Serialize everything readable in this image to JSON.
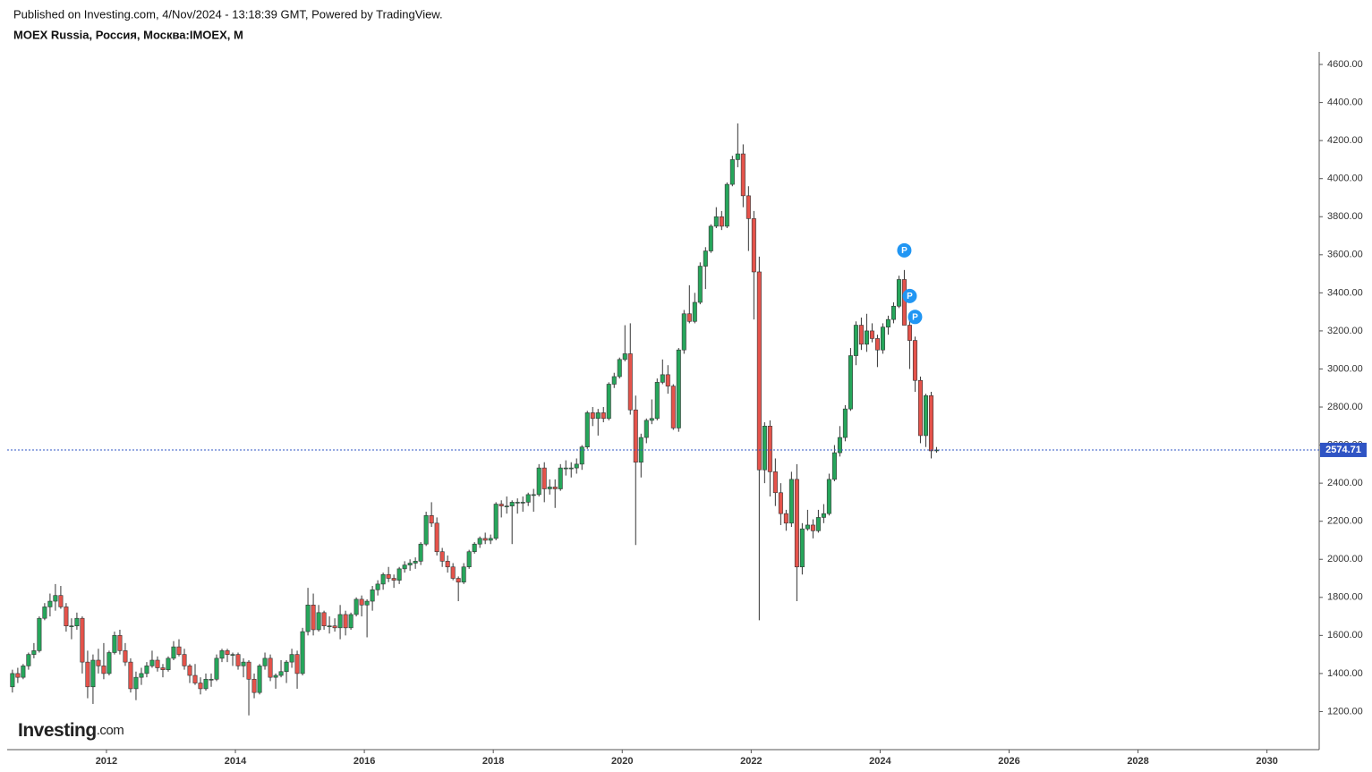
{
  "header": {
    "published": "Published on Investing.com, 4/Nov/2024 - 13:18:39 GMT, Powered by TradingView.",
    "symbol": "MOEX Russia, Россия, Москва:IMOEX, M"
  },
  "logo": {
    "name": "Investing",
    "suffix": ".com"
  },
  "chart_data": {
    "type": "candlestick",
    "x": [
      "2010-07",
      "2010-08",
      "2010-09",
      "2010-10",
      "2010-11",
      "2010-12",
      "2011-01",
      "2011-02",
      "2011-03",
      "2011-04",
      "2011-05",
      "2011-06",
      "2011-07",
      "2011-08",
      "2011-09",
      "2011-10",
      "2011-11",
      "2011-12",
      "2012-01",
      "2012-02",
      "2012-03",
      "2012-04",
      "2012-05",
      "2012-06",
      "2012-07",
      "2012-08",
      "2012-09",
      "2012-10",
      "2012-11",
      "2012-12",
      "2013-01",
      "2013-02",
      "2013-03",
      "2013-04",
      "2013-05",
      "2013-06",
      "2013-07",
      "2013-08",
      "2013-09",
      "2013-10",
      "2013-11",
      "2013-12",
      "2014-01",
      "2014-02",
      "2014-03",
      "2014-04",
      "2014-05",
      "2014-06",
      "2014-07",
      "2014-08",
      "2014-09",
      "2014-10",
      "2014-11",
      "2014-12",
      "2015-01",
      "2015-02",
      "2015-03",
      "2015-04",
      "2015-05",
      "2015-06",
      "2015-07",
      "2015-08",
      "2015-09",
      "2015-10",
      "2015-11",
      "2015-12",
      "2016-01",
      "2016-02",
      "2016-03",
      "2016-04",
      "2016-05",
      "2016-06",
      "2016-07",
      "2016-08",
      "2016-09",
      "2016-10",
      "2016-11",
      "2016-12",
      "2017-01",
      "2017-02",
      "2017-03",
      "2017-04",
      "2017-05",
      "2017-06",
      "2017-07",
      "2017-08",
      "2017-09",
      "2017-10",
      "2017-11",
      "2017-12",
      "2018-01",
      "2018-02",
      "2018-03",
      "2018-04",
      "2018-05",
      "2018-06",
      "2018-07",
      "2018-08",
      "2018-09",
      "2018-10",
      "2018-11",
      "2018-12",
      "2019-01",
      "2019-02",
      "2019-03",
      "2019-04",
      "2019-05",
      "2019-06",
      "2019-07",
      "2019-08",
      "2019-09",
      "2019-10",
      "2019-11",
      "2019-12",
      "2020-01",
      "2020-02",
      "2020-03",
      "2020-04",
      "2020-05",
      "2020-06",
      "2020-07",
      "2020-08",
      "2020-09",
      "2020-10",
      "2020-11",
      "2020-12",
      "2021-01",
      "2021-02",
      "2021-03",
      "2021-04",
      "2021-05",
      "2021-06",
      "2021-07",
      "2021-08",
      "2021-09",
      "2021-10",
      "2021-11",
      "2021-12",
      "2022-01",
      "2022-02",
      "2022-03",
      "2022-04",
      "2022-05",
      "2022-06",
      "2022-07",
      "2022-08",
      "2022-09",
      "2022-10",
      "2022-11",
      "2022-12",
      "2023-01",
      "2023-02",
      "2023-03",
      "2023-04",
      "2023-05",
      "2023-06",
      "2023-07",
      "2023-08",
      "2023-09",
      "2023-10",
      "2023-11",
      "2023-12",
      "2024-01",
      "2024-02",
      "2024-03",
      "2024-04",
      "2024-05",
      "2024-06",
      "2024-07",
      "2024-08",
      "2024-09",
      "2024-10",
      "2024-11"
    ],
    "open": [
      1330,
      1400,
      1380,
      1440,
      1500,
      1520,
      1690,
      1750,
      1780,
      1810,
      1750,
      1650,
      1650,
      1690,
      1460,
      1330,
      1470,
      1440,
      1400,
      1510,
      1600,
      1520,
      1460,
      1320,
      1380,
      1400,
      1440,
      1470,
      1430,
      1420,
      1480,
      1540,
      1500,
      1440,
      1390,
      1350,
      1320,
      1370,
      1370,
      1480,
      1520,
      1500,
      1500,
      1440,
      1460,
      1370,
      1300,
      1440,
      1480,
      1380,
      1390,
      1410,
      1460,
      1500,
      1400,
      1620,
      1760,
      1630,
      1720,
      1650,
      1650,
      1640,
      1710,
      1640,
      1710,
      1790,
      1760,
      1780,
      1840,
      1870,
      1920,
      1900,
      1890,
      1950,
      1970,
      1980,
      1990,
      2080,
      2230,
      2190,
      2040,
      1990,
      1960,
      1900,
      1880,
      1960,
      2040,
      2080,
      2110,
      2100,
      2110,
      2290,
      2280,
      2280,
      2300,
      2300,
      2300,
      2340,
      2340,
      2480,
      2370,
      2380,
      2370,
      2480,
      2480,
      2480,
      2500,
      2590,
      2770,
      2740,
      2770,
      2740,
      2920,
      2960,
      3050,
      3080,
      2785,
      2510,
      2640,
      2730,
      2740,
      2930,
      2970,
      2910,
      2690,
      3100,
      3290,
      3250,
      3350,
      3540,
      3620,
      3750,
      3800,
      3750,
      3970,
      4100,
      4130,
      3910,
      3790,
      3510,
      2470,
      2700,
      2460,
      2350,
      2240,
      2190,
      2420,
      1960,
      2160,
      2180,
      2150,
      2220,
      2240,
      2420,
      2560,
      2640,
      2790,
      3070,
      3230,
      3130,
      3200,
      3160,
      3100,
      3220,
      3260,
      3330,
      3470,
      3230,
      3150,
      2940,
      2650,
      2860,
      2570
    ],
    "high": [
      1420,
      1430,
      1450,
      1510,
      1560,
      1700,
      1770,
      1820,
      1870,
      1860,
      1770,
      1690,
      1720,
      1700,
      1520,
      1500,
      1530,
      1560,
      1520,
      1620,
      1630,
      1560,
      1480,
      1410,
      1430,
      1460,
      1520,
      1490,
      1450,
      1490,
      1570,
      1580,
      1530,
      1450,
      1450,
      1380,
      1400,
      1400,
      1500,
      1530,
      1530,
      1510,
      1510,
      1480,
      1470,
      1400,
      1450,
      1510,
      1500,
      1400,
      1470,
      1470,
      1530,
      1520,
      1640,
      1850,
      1820,
      1760,
      1730,
      1700,
      1690,
      1760,
      1730,
      1720,
      1800,
      1810,
      1790,
      1860,
      1890,
      1930,
      1960,
      1920,
      1960,
      1990,
      2000,
      2010,
      2090,
      2250,
      2300,
      2220,
      2060,
      2020,
      1980,
      1910,
      1980,
      2050,
      2090,
      2120,
      2140,
      2130,
      2300,
      2310,
      2330,
      2310,
      2320,
      2330,
      2350,
      2370,
      2500,
      2510,
      2420,
      2420,
      2500,
      2520,
      2510,
      2530,
      2600,
      2780,
      2800,
      2790,
      2800,
      2930,
      2980,
      3060,
      3230,
      3240,
      2860,
      2660,
      2740,
      2840,
      2950,
      3050,
      3020,
      2920,
      3110,
      3310,
      3440,
      3400,
      3560,
      3640,
      3760,
      3850,
      3830,
      3980,
      4120,
      4290,
      4180,
      3960,
      3830,
      3590,
      2720,
      2730,
      2530,
      2400,
      2260,
      2460,
      2500,
      2190,
      2260,
      2210,
      2260,
      2290,
      2450,
      2600,
      2700,
      2810,
      3110,
      3250,
      3270,
      3290,
      3240,
      3180,
      3240,
      3280,
      3350,
      3490,
      3520,
      3280,
      3170,
      2960,
      2870,
      2880,
      2590
    ],
    "low": [
      1300,
      1350,
      1370,
      1420,
      1480,
      1510,
      1680,
      1700,
      1730,
      1740,
      1620,
      1580,
      1630,
      1400,
      1270,
      1240,
      1400,
      1370,
      1390,
      1500,
      1500,
      1440,
      1300,
      1260,
      1340,
      1380,
      1430,
      1410,
      1380,
      1410,
      1470,
      1490,
      1420,
      1350,
      1340,
      1290,
      1310,
      1330,
      1360,
      1460,
      1460,
      1440,
      1420,
      1380,
      1180,
      1270,
      1290,
      1420,
      1360,
      1320,
      1380,
      1350,
      1430,
      1320,
      1390,
      1600,
      1600,
      1620,
      1630,
      1610,
      1620,
      1580,
      1600,
      1630,
      1700,
      1700,
      1590,
      1730,
      1810,
      1840,
      1880,
      1850,
      1870,
      1930,
      1940,
      1950,
      1970,
      2070,
      2170,
      2020,
      1960,
      1930,
      1890,
      1780,
      1870,
      1950,
      2030,
      2060,
      2080,
      2080,
      2100,
      2220,
      2240,
      2080,
      2240,
      2250,
      2280,
      2250,
      2330,
      2300,
      2340,
      2270,
      2360,
      2440,
      2430,
      2450,
      2470,
      2580,
      2700,
      2650,
      2720,
      2730,
      2900,
      2950,
      3040,
      2760,
      2075,
      2430,
      2610,
      2710,
      2730,
      2920,
      2870,
      2680,
      2670,
      3080,
      3240,
      3240,
      3340,
      3420,
      3610,
      3740,
      3730,
      3740,
      3960,
      4060,
      3850,
      3620,
      3260,
      1680,
      2400,
      2330,
      2280,
      2180,
      2150,
      2170,
      1780,
      1920,
      2150,
      2110,
      2140,
      2190,
      2230,
      2410,
      2540,
      2620,
      2780,
      3020,
      3100,
      3090,
      3140,
      3010,
      3080,
      3180,
      3240,
      3320,
      3230,
      3000,
      2880,
      2610,
      2590,
      2530,
      2560
    ],
    "close": [
      1400,
      1380,
      1440,
      1500,
      1520,
      1690,
      1750,
      1780,
      1810,
      1750,
      1650,
      1650,
      1690,
      1460,
      1330,
      1470,
      1440,
      1400,
      1510,
      1600,
      1520,
      1460,
      1320,
      1380,
      1400,
      1440,
      1470,
      1430,
      1420,
      1480,
      1540,
      1500,
      1440,
      1390,
      1350,
      1320,
      1370,
      1370,
      1480,
      1520,
      1500,
      1500,
      1440,
      1460,
      1370,
      1300,
      1440,
      1480,
      1380,
      1390,
      1410,
      1460,
      1500,
      1400,
      1620,
      1760,
      1630,
      1720,
      1650,
      1650,
      1640,
      1710,
      1640,
      1710,
      1790,
      1760,
      1780,
      1840,
      1870,
      1920,
      1900,
      1890,
      1950,
      1970,
      1980,
      1990,
      2080,
      2230,
      2190,
      2040,
      1990,
      1960,
      1900,
      1880,
      1960,
      2040,
      2080,
      2110,
      2100,
      2110,
      2290,
      2280,
      2280,
      2300,
      2300,
      2300,
      2340,
      2340,
      2480,
      2370,
      2380,
      2370,
      2480,
      2480,
      2480,
      2500,
      2590,
      2770,
      2740,
      2770,
      2740,
      2920,
      2960,
      3050,
      3080,
      2785,
      2510,
      2640,
      2730,
      2740,
      2930,
      2970,
      2910,
      2690,
      3100,
      3290,
      3250,
      3350,
      3540,
      3620,
      3750,
      3800,
      3750,
      3970,
      4100,
      4130,
      3910,
      3790,
      3510,
      2470,
      2700,
      2460,
      2350,
      2240,
      2190,
      2420,
      1960,
      2160,
      2180,
      2150,
      2220,
      2240,
      2420,
      2560,
      2640,
      2790,
      3070,
      3230,
      3130,
      3200,
      3160,
      3100,
      3220,
      3260,
      3330,
      3470,
      3230,
      3150,
      2940,
      2650,
      2860,
      2570,
      2574.71
    ],
    "up_color": "#26a65b",
    "down_color": "#e5534b",
    "wick_color": "#333333",
    "last_line_color": "#2f54c4",
    "event_color": "#2196f3",
    "events": [
      {
        "x": "2024-05",
        "label": "P"
      },
      {
        "x": "2024-06",
        "label": "P"
      },
      {
        "x": "2024-07",
        "label": "P"
      }
    ],
    "xlim": [
      2010.46,
      2030.81
    ],
    "xticks": [
      2012,
      2014,
      2016,
      2018,
      2020,
      2022,
      2024,
      2026,
      2028,
      2030
    ],
    "ylim": [
      1000,
      4666
    ],
    "yticks": [
      {
        "value": 1200,
        "label": "1200.00"
      },
      {
        "value": 1400,
        "label": "1400.00"
      },
      {
        "value": 1600,
        "label": "1600.00"
      },
      {
        "value": 1800,
        "label": "1800.00"
      },
      {
        "value": 2000,
        "label": "2000.00"
      },
      {
        "value": 2200,
        "label": "2200.00"
      },
      {
        "value": 2400,
        "label": "2400.00"
      },
      {
        "value": 2600,
        "label": "2600.00"
      },
      {
        "value": 2800,
        "label": "2800.00"
      },
      {
        "value": 3000,
        "label": "3000.00"
      },
      {
        "value": 3200,
        "label": "3200.00"
      },
      {
        "value": 3400,
        "label": "3400.00"
      },
      {
        "value": 3600,
        "label": "3600.00"
      },
      {
        "value": 3800,
        "label": "3800.00"
      },
      {
        "value": 4000,
        "label": "4000.00"
      },
      {
        "value": 4200,
        "label": "4200.00"
      },
      {
        "value": 4400,
        "label": "4400.00"
      },
      {
        "value": 4600,
        "label": "4600.00"
      }
    ],
    "grid": false
  }
}
